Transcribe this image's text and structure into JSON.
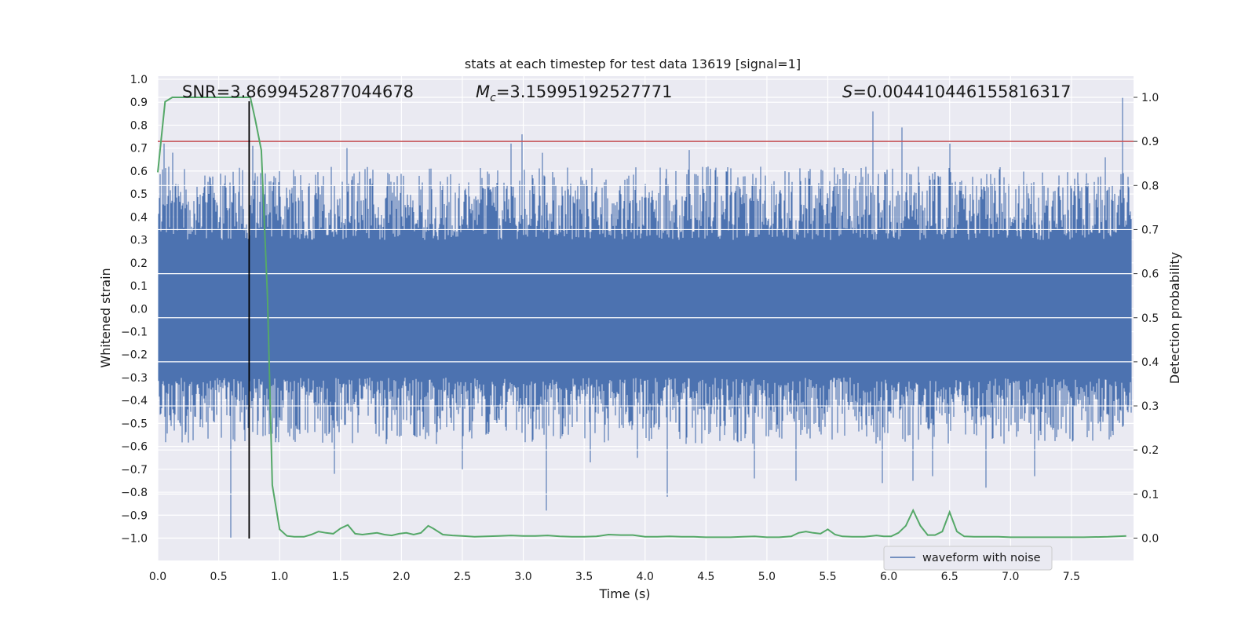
{
  "chart_data": {
    "type": "line",
    "title": "stats at each timestep for test data 13619 [signal=1]",
    "xlabel": "Time (s)",
    "ylabel": "Whitened strain",
    "y2label": "Detection probability",
    "xlim": [
      0.0,
      8.0
    ],
    "ylim": [
      -1.09,
      1.0
    ],
    "y2lim": [
      -0.05,
      1.04
    ],
    "x_ticks": [
      "0.0",
      "0.5",
      "1.0",
      "1.5",
      "2.0",
      "2.5",
      "3.0",
      "3.5",
      "4.0",
      "4.5",
      "5.0",
      "5.5",
      "6.0",
      "6.5",
      "7.0",
      "7.5"
    ],
    "y_ticks": [
      "1.0",
      "0.9",
      "0.8",
      "0.7",
      "0.6",
      "0.5",
      "0.4",
      "0.3",
      "0.2",
      "0.1",
      "0.0",
      "−0.1",
      "−0.2",
      "−0.3",
      "−0.4",
      "−0.5",
      "−0.6",
      "−0.7",
      "−0.8",
      "−0.9",
      "−1.0"
    ],
    "y2_ticks": [
      "1.0",
      "0.9",
      "0.8",
      "0.7",
      "0.6",
      "0.5",
      "0.4",
      "0.3",
      "0.2",
      "0.1",
      "0.0"
    ],
    "stats": {
      "snr": "SNR=3.8699452877044678",
      "mc_symbol": "M",
      "mc_sub": "c",
      "mc_value": "=3.15995192527771",
      "s_symbol": "S",
      "s_value": "=0.004410446155816317"
    },
    "legend": {
      "label": "waveform with noise",
      "position": "lower-right"
    },
    "series": [
      {
        "name": "waveform with noise",
        "axis": "left",
        "color": "#4c72b0",
        "description": "dense whitened strain, core band ~-0.4..0.4 with spikes up to ~0.92 and down to -1.0",
        "spikes": [
          [
            0.05,
            0.72
          ],
          [
            0.12,
            0.68
          ],
          [
            0.6,
            -1.0
          ],
          [
            0.78,
            0.71
          ],
          [
            1.45,
            -0.72
          ],
          [
            1.55,
            0.7
          ],
          [
            2.5,
            -0.7
          ],
          [
            2.9,
            0.72
          ],
          [
            2.99,
            0.76
          ],
          [
            3.19,
            -0.88
          ],
          [
            3.55,
            -0.67
          ],
          [
            3.94,
            -0.65
          ],
          [
            4.18,
            -0.82
          ],
          [
            4.9,
            -0.74
          ],
          [
            5.24,
            -0.75
          ],
          [
            5.87,
            0.86
          ],
          [
            5.95,
            -0.76
          ],
          [
            6.11,
            0.79
          ],
          [
            6.2,
            -0.75
          ],
          [
            6.36,
            -0.73
          ],
          [
            6.5,
            0.72
          ],
          [
            6.8,
            -0.78
          ],
          [
            7.2,
            -0.73
          ],
          [
            7.78,
            0.66
          ],
          [
            7.92,
            0.92
          ]
        ]
      },
      {
        "name": "",
        "axis": "right",
        "color": "#55a868",
        "x": [
          0.0,
          0.06,
          0.12,
          0.3,
          0.5,
          0.66,
          0.73,
          0.76,
          0.8,
          0.85,
          0.9,
          0.94,
          1.0,
          1.06,
          1.12,
          1.2,
          1.26,
          1.32,
          1.38,
          1.44,
          1.5,
          1.56,
          1.62,
          1.68,
          1.74,
          1.8,
          1.86,
          1.92,
          1.98,
          2.04,
          2.1,
          2.16,
          2.22,
          2.26,
          2.34,
          2.42,
          2.5,
          2.6,
          2.7,
          2.8,
          2.9,
          3.0,
          3.1,
          3.2,
          3.3,
          3.4,
          3.5,
          3.6,
          3.7,
          3.8,
          3.9,
          4.0,
          4.1,
          4.2,
          4.3,
          4.4,
          4.5,
          4.6,
          4.7,
          4.8,
          4.9,
          5.0,
          5.1,
          5.2,
          5.26,
          5.32,
          5.38,
          5.44,
          5.5,
          5.56,
          5.62,
          5.7,
          5.8,
          5.9,
          5.96,
          6.02,
          6.08,
          6.14,
          6.2,
          6.26,
          6.32,
          6.38,
          6.44,
          6.5,
          6.56,
          6.62,
          6.7,
          6.8,
          6.9,
          7.0,
          7.2,
          7.4,
          7.6,
          7.8,
          7.95
        ],
        "y": [
          0.83,
          0.99,
          1.0,
          1.0,
          1.0,
          1.0,
          1.0,
          1.0,
          0.95,
          0.88,
          0.55,
          0.12,
          0.02,
          0.005,
          0.003,
          0.003,
          0.008,
          0.015,
          0.012,
          0.01,
          0.022,
          0.03,
          0.01,
          0.008,
          0.01,
          0.012,
          0.008,
          0.006,
          0.01,
          0.012,
          0.008,
          0.012,
          0.028,
          0.022,
          0.008,
          0.006,
          0.005,
          0.003,
          0.004,
          0.005,
          0.006,
          0.005,
          0.005,
          0.006,
          0.004,
          0.003,
          0.003,
          0.004,
          0.008,
          0.007,
          0.007,
          0.003,
          0.003,
          0.004,
          0.003,
          0.003,
          0.002,
          0.002,
          0.002,
          0.003,
          0.004,
          0.002,
          0.002,
          0.004,
          0.012,
          0.015,
          0.012,
          0.01,
          0.02,
          0.008,
          0.004,
          0.003,
          0.003,
          0.006,
          0.004,
          0.004,
          0.012,
          0.028,
          0.063,
          0.028,
          0.007,
          0.007,
          0.015,
          0.059,
          0.015,
          0.004,
          0.003,
          0.003,
          0.003,
          0.002,
          0.002,
          0.002,
          0.002,
          0.003,
          0.005
        ]
      }
    ],
    "hline_y2": 0.9,
    "hline_color": "#c44e52",
    "vline_x": 0.75,
    "vline_color": "#000000",
    "grid": true,
    "facecolor": "#eaeaf2"
  }
}
